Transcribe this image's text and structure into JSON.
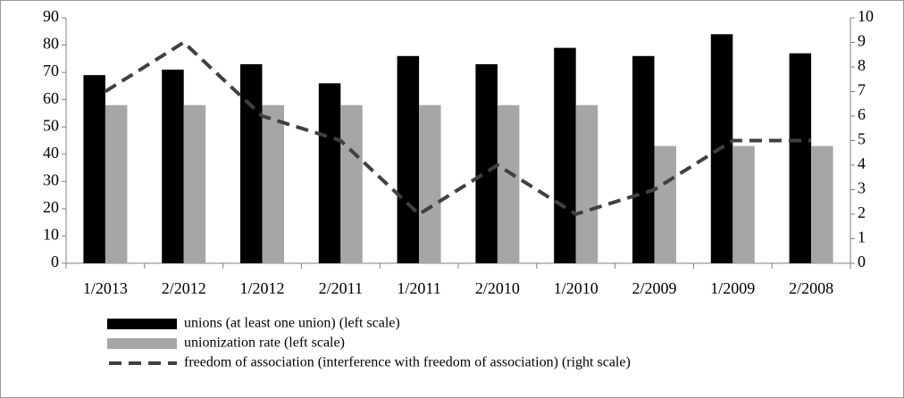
{
  "chart_data": {
    "type": "bar",
    "categories": [
      "1/2013",
      "2/2012",
      "1/2012",
      "2/2011",
      "1/2011",
      "2/2010",
      "1/2010",
      "2/2009",
      "1/2009",
      "2/2008"
    ],
    "series": [
      {
        "name": "unions (at least one union) (left scale)",
        "color": "#000000",
        "values": [
          69,
          71,
          73,
          66,
          76,
          73,
          79,
          76,
          84,
          77
        ]
      },
      {
        "name": "unionization rate (left scale)",
        "color": "#a6a6a6",
        "values": [
          58,
          58,
          58,
          58,
          58,
          58,
          58,
          43,
          43,
          43
        ]
      },
      {
        "name": "freedom of association (interference with freedom of association) (right scale)",
        "color": "#404040",
        "type": "line",
        "dashed": true,
        "axis": "y2",
        "values": [
          7,
          9,
          6,
          5,
          2,
          4,
          2,
          3,
          5,
          5
        ]
      }
    ],
    "ylim": [
      0,
      90
    ],
    "yticks": [
      0,
      10,
      20,
      30,
      40,
      50,
      60,
      70,
      80,
      90
    ],
    "y2lim": [
      0,
      10
    ],
    "y2ticks": [
      0,
      1,
      2,
      3,
      4,
      5,
      6,
      7,
      8,
      9,
      10
    ],
    "grid": false,
    "legend": "bottom"
  }
}
